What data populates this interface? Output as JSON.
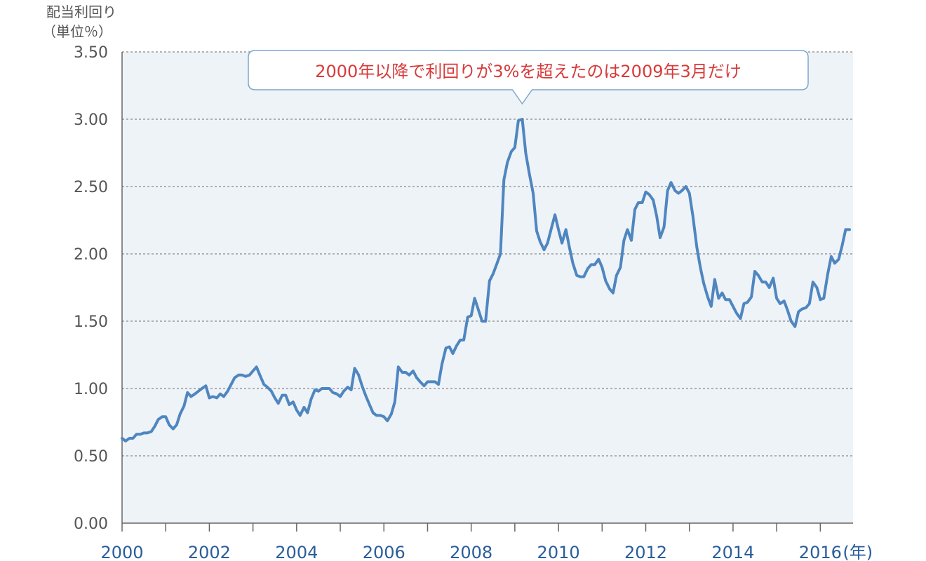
{
  "chart_data": {
    "type": "line",
    "ylabel_line1": "配当利回り",
    "ylabel_line2": "（単位％）",
    "x_unit": "(年)",
    "xlim": [
      2000,
      2016.75
    ],
    "ylim": [
      0,
      3.5
    ],
    "yticks": [
      "0.00",
      "0.50",
      "1.00",
      "1.50",
      "2.00",
      "2.50",
      "3.00",
      "3.50"
    ],
    "xticks": [
      "2000",
      "2002",
      "2004",
      "2006",
      "2008",
      "2010",
      "2012",
      "2014",
      "2016"
    ],
    "grid": true,
    "annotation": {
      "text": "2000年以降で利回りが3%を超えたのは2009年3月だけ",
      "x": 2009.17,
      "y": 3.0
    },
    "colors": {
      "line": "#4f86c0",
      "plot_bg": "#eef3f8",
      "annotation_text": "#d83a3a",
      "annotation_border": "#7fa6cf",
      "xtick": "#2a5d9a",
      "grid": "#888888"
    },
    "series": [
      {
        "x": [
          2000.0,
          2000.08,
          2000.17,
          2000.25,
          2000.33,
          2000.42,
          2000.5,
          2000.58,
          2000.67,
          2000.75,
          2000.83,
          2000.92,
          2001.0,
          2001.08,
          2001.17,
          2001.25,
          2001.33,
          2001.42,
          2001.5,
          2001.58,
          2001.67,
          2001.75,
          2001.83,
          2001.92,
          2002.0,
          2002.08,
          2002.17,
          2002.25,
          2002.33,
          2002.42,
          2002.5,
          2002.58,
          2002.67,
          2002.75,
          2002.83,
          2002.92,
          2003.0,
          2003.08,
          2003.17,
          2003.25,
          2003.33,
          2003.42,
          2003.5,
          2003.58,
          2003.67,
          2003.75,
          2003.83,
          2003.92,
          2004.0,
          2004.08,
          2004.17,
          2004.25,
          2004.33,
          2004.42,
          2004.5,
          2004.58,
          2004.67,
          2004.75,
          2004.83,
          2004.92,
          2005.0,
          2005.08,
          2005.17,
          2005.25,
          2005.33,
          2005.42,
          2005.5,
          2005.58,
          2005.67,
          2005.75,
          2005.83,
          2005.92,
          2006.0,
          2006.08,
          2006.17,
          2006.25,
          2006.33,
          2006.42,
          2006.5,
          2006.58,
          2006.67,
          2006.75,
          2006.83,
          2006.92,
          2007.0,
          2007.08,
          2007.17,
          2007.25,
          2007.33,
          2007.42,
          2007.5,
          2007.58,
          2007.67,
          2007.75,
          2007.83,
          2007.92,
          2008.0,
          2008.08,
          2008.17,
          2008.25,
          2008.33,
          2008.42,
          2008.5,
          2008.58,
          2008.67,
          2008.75,
          2008.83,
          2008.92,
          2009.0,
          2009.08,
          2009.17,
          2009.25,
          2009.33,
          2009.42,
          2009.5,
          2009.58,
          2009.67,
          2009.75,
          2009.83,
          2009.92,
          2010.0,
          2010.08,
          2010.17,
          2010.25,
          2010.33,
          2010.42,
          2010.5,
          2010.58,
          2010.67,
          2010.75,
          2010.83,
          2010.92,
          2011.0,
          2011.08,
          2011.17,
          2011.25,
          2011.33,
          2011.42,
          2011.5,
          2011.58,
          2011.67,
          2011.75,
          2011.83,
          2011.92,
          2012.0,
          2012.08,
          2012.17,
          2012.25,
          2012.33,
          2012.42,
          2012.5,
          2012.58,
          2012.67,
          2012.75,
          2012.83,
          2012.92,
          2013.0,
          2013.08,
          2013.17,
          2013.25,
          2013.33,
          2013.42,
          2013.5,
          2013.58,
          2013.67,
          2013.75,
          2013.83,
          2013.92,
          2014.0,
          2014.08,
          2014.17,
          2014.25,
          2014.33,
          2014.42,
          2014.5,
          2014.58,
          2014.67,
          2014.75,
          2014.83,
          2014.92,
          2015.0,
          2015.08,
          2015.17,
          2015.25,
          2015.33,
          2015.42,
          2015.5,
          2015.58,
          2015.67,
          2015.75,
          2015.83,
          2015.92,
          2016.0,
          2016.08,
          2016.17,
          2016.25,
          2016.33,
          2016.42,
          2016.5,
          2016.58,
          2016.67
        ],
        "y": [
          0.63,
          0.61,
          0.63,
          0.63,
          0.66,
          0.66,
          0.67,
          0.67,
          0.68,
          0.72,
          0.77,
          0.79,
          0.79,
          0.73,
          0.7,
          0.73,
          0.81,
          0.87,
          0.97,
          0.94,
          0.96,
          0.98,
          1.0,
          1.02,
          0.93,
          0.94,
          0.93,
          0.96,
          0.94,
          0.98,
          1.03,
          1.08,
          1.1,
          1.1,
          1.09,
          1.1,
          1.13,
          1.16,
          1.09,
          1.03,
          1.01,
          0.98,
          0.93,
          0.89,
          0.95,
          0.95,
          0.88,
          0.9,
          0.84,
          0.8,
          0.86,
          0.82,
          0.92,
          0.99,
          0.98,
          1.0,
          1.0,
          1.0,
          0.97,
          0.96,
          0.94,
          0.98,
          1.01,
          0.99,
          1.15,
          1.1,
          1.02,
          0.95,
          0.88,
          0.82,
          0.8,
          0.8,
          0.79,
          0.76,
          0.81,
          0.9,
          1.16,
          1.12,
          1.12,
          1.1,
          1.13,
          1.08,
          1.05,
          1.02,
          1.05,
          1.05,
          1.05,
          1.03,
          1.18,
          1.3,
          1.31,
          1.26,
          1.32,
          1.36,
          1.36,
          1.53,
          1.54,
          1.67,
          1.58,
          1.5,
          1.5,
          1.8,
          1.85,
          1.92,
          2.0,
          2.55,
          2.68,
          2.76,
          2.79,
          2.99,
          3.0,
          2.75,
          2.6,
          2.45,
          2.17,
          2.09,
          2.03,
          2.08,
          2.18,
          2.29,
          2.18,
          2.08,
          2.18,
          2.05,
          1.93,
          1.84,
          1.83,
          1.83,
          1.89,
          1.92,
          1.92,
          1.96,
          1.9,
          1.8,
          1.74,
          1.71,
          1.84,
          1.9,
          2.1,
          2.18,
          2.1,
          2.33,
          2.38,
          2.38,
          2.46,
          2.44,
          2.4,
          2.28,
          2.12,
          2.2,
          2.47,
          2.53,
          2.47,
          2.45,
          2.47,
          2.5,
          2.45,
          2.28,
          2.05,
          1.9,
          1.78,
          1.68,
          1.61,
          1.81,
          1.67,
          1.71,
          1.66,
          1.66,
          1.61,
          1.56,
          1.52,
          1.63,
          1.64,
          1.68,
          1.87,
          1.84,
          1.79,
          1.79,
          1.75,
          1.82,
          1.67,
          1.63,
          1.65,
          1.58,
          1.5,
          1.46,
          1.57,
          1.59,
          1.6,
          1.63,
          1.79,
          1.75,
          1.66,
          1.67,
          1.85,
          1.98,
          1.93,
          1.96,
          2.06,
          2.18,
          2.18
        ]
      }
    ]
  }
}
